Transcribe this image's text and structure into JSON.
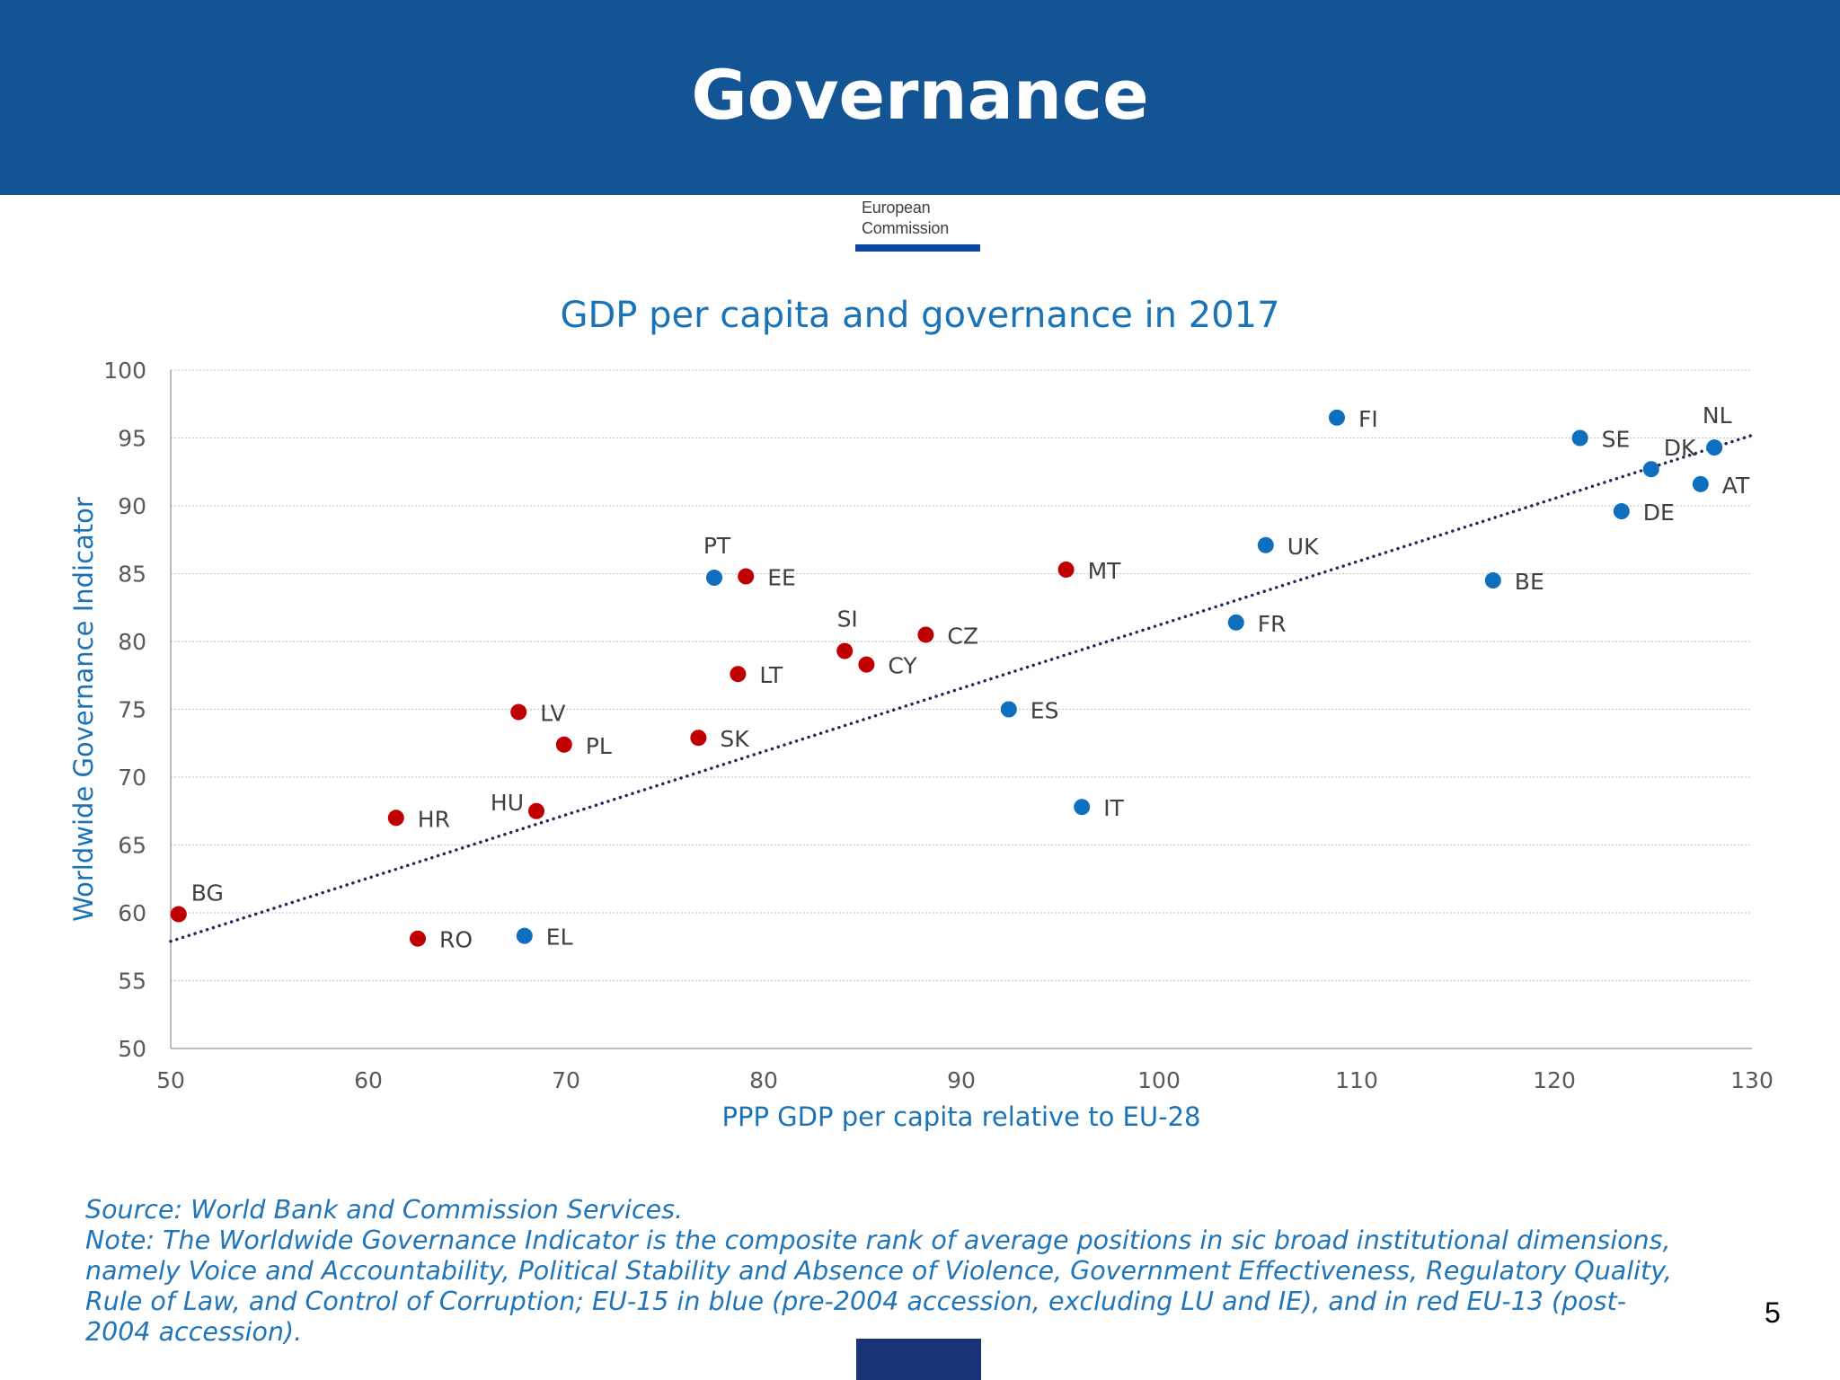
{
  "header": {
    "title": "Governance"
  },
  "logo": {
    "line1": "European",
    "line2": "Commission"
  },
  "page_number": "5",
  "footnote": {
    "source": "Source: World Bank and Commission Services.",
    "note_lines": [
      "Note: The Worldwide Governance Indicator is the composite rank of average positions in sic broad institutional dimensions,",
      "namely Voice and Accountability, Political Stability and Absence of Violence, Government Effectiveness, Regulatory Quality,",
      "Rule of Law, and Control of Corruption; EU-15 in blue (pre-2004 accession, excluding LU and IE), and in red EU-13 (post-",
      "2004 accession)."
    ]
  },
  "colors": {
    "header_bg": "#135495",
    "eu15": "#0e6fbf",
    "eu13": "#c00000",
    "trendline": "#1f2a5a",
    "title_text": "#1a72b7"
  },
  "chart_data": {
    "type": "scatter",
    "title": "GDP per capita and governance in 2017",
    "xlabel": "PPP GDP per capita relative to EU-28",
    "ylabel": "Worldwide Governance Indicator",
    "xlim": [
      50,
      130
    ],
    "ylim": [
      50,
      100
    ],
    "xticks": [
      50,
      60,
      70,
      80,
      90,
      100,
      110,
      120,
      130
    ],
    "yticks": [
      50,
      55,
      60,
      65,
      70,
      75,
      80,
      85,
      90,
      95,
      100
    ],
    "grid": true,
    "trendline": {
      "x": [
        50,
        130
      ],
      "y": [
        57.9,
        95.2
      ],
      "style": "dotted"
    },
    "series": [
      {
        "group": "EU-15",
        "color": "#0e6fbf",
        "points": [
          {
            "label": "FI",
            "x": 109,
            "y": 96.5,
            "pos": "right"
          },
          {
            "label": "SE",
            "x": 121.3,
            "y": 95,
            "pos": "right"
          },
          {
            "label": "DK",
            "x": 124.9,
            "y": 92.7,
            "pos": "above-right"
          },
          {
            "label": "NL",
            "x": 128.1,
            "y": 94.3,
            "pos": "above"
          },
          {
            "label": "AT",
            "x": 127.4,
            "y": 91.6,
            "pos": "right"
          },
          {
            "label": "DE",
            "x": 123.4,
            "y": 89.6,
            "pos": "right"
          },
          {
            "label": "UK",
            "x": 105.4,
            "y": 87.1,
            "pos": "right"
          },
          {
            "label": "BE",
            "x": 116.9,
            "y": 84.5,
            "pos": "right"
          },
          {
            "label": "FR",
            "x": 103.9,
            "y": 81.4,
            "pos": "right"
          },
          {
            "label": "PT",
            "x": 77.5,
            "y": 84.7,
            "pos": "above"
          },
          {
            "label": "ES",
            "x": 92.4,
            "y": 75,
            "pos": "right"
          },
          {
            "label": "IT",
            "x": 96.1,
            "y": 67.8,
            "pos": "right"
          },
          {
            "label": "EL",
            "x": 67.9,
            "y": 58.3,
            "pos": "right"
          }
        ]
      },
      {
        "group": "EU-13",
        "color": "#c00000",
        "points": [
          {
            "label": "EE",
            "x": 79.1,
            "y": 84.8,
            "pos": "right"
          },
          {
            "label": "MT",
            "x": 95.3,
            "y": 85.3,
            "pos": "right"
          },
          {
            "label": "SI",
            "x": 84.1,
            "y": 79.3,
            "pos": "above"
          },
          {
            "label": "CZ",
            "x": 88.2,
            "y": 80.5,
            "pos": "right"
          },
          {
            "label": "CY",
            "x": 85.2,
            "y": 78.3,
            "pos": "right"
          },
          {
            "label": "LT",
            "x": 78.7,
            "y": 77.6,
            "pos": "right"
          },
          {
            "label": "LV",
            "x": 67.6,
            "y": 74.8,
            "pos": "right"
          },
          {
            "label": "PL",
            "x": 69.9,
            "y": 72.4,
            "pos": "right"
          },
          {
            "label": "SK",
            "x": 76.7,
            "y": 72.9,
            "pos": "right"
          },
          {
            "label": "HU",
            "x": 68.5,
            "y": 67.5,
            "pos": "left"
          },
          {
            "label": "HR",
            "x": 61.4,
            "y": 67,
            "pos": "right"
          },
          {
            "label": "BG",
            "x": 50.4,
            "y": 59.9,
            "pos": "above-right"
          },
          {
            "label": "RO",
            "x": 62.5,
            "y": 58.1,
            "pos": "right"
          }
        ]
      }
    ]
  }
}
